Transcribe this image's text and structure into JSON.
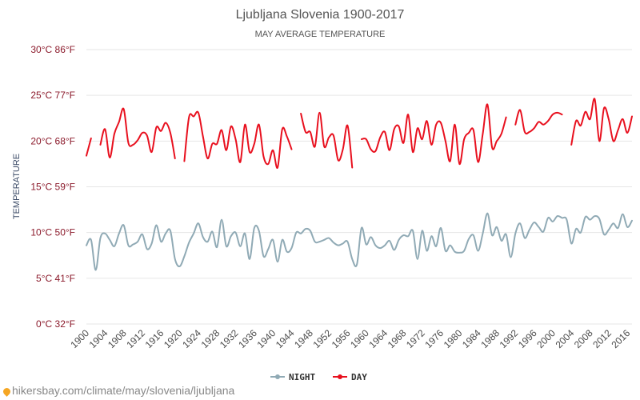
{
  "chart_data": {
    "type": "line",
    "title": "Ljubljana Slovenia 1900-2017",
    "subtitle": "MAY AVERAGE TEMPERATURE",
    "ylabel": "TEMPERATURE",
    "ylim": [
      0,
      30
    ],
    "xlim": [
      1900,
      2017
    ],
    "y_ticks": [
      {
        "value": 0,
        "label": "0°C 32°F"
      },
      {
        "value": 5,
        "label": "5°C 41°F"
      },
      {
        "value": 10,
        "label": "10°C 50°F"
      },
      {
        "value": 15,
        "label": "15°C 59°F"
      },
      {
        "value": 20,
        "label": "20°C 68°F"
      },
      {
        "value": 25,
        "label": "25°C 77°F"
      },
      {
        "value": 30,
        "label": "30°C 86°F"
      }
    ],
    "x_ticks": [
      "1900",
      "1904",
      "1908",
      "1912",
      "1916",
      "1920",
      "1924",
      "1928",
      "1932",
      "1936",
      "1940",
      "1944",
      "1948",
      "1952",
      "1956",
      "1960",
      "1964",
      "1968",
      "1972",
      "1976",
      "1980",
      "1984",
      "1988",
      "1992",
      "1996",
      "2000",
      "2004",
      "2008",
      "2012",
      "2016"
    ],
    "grid": true,
    "legend_position": "bottom",
    "series": [
      {
        "name": "NIGHT",
        "color": "#90aab5",
        "x": [
          1900,
          1901,
          1902,
          1903,
          1904,
          1905,
          1906,
          1907,
          1908,
          1909,
          1910,
          1911,
          1912,
          1913,
          1914,
          1915,
          1916,
          1917,
          1918,
          1919,
          1920,
          1921,
          1922,
          1923,
          1924,
          1925,
          1926,
          1927,
          1928,
          1929,
          1930,
          1931,
          1932,
          1933,
          1934,
          1935,
          1936,
          1937,
          1938,
          1939,
          1940,
          1941,
          1942,
          1943,
          1944,
          1945,
          1946,
          1947,
          1948,
          1949,
          1950,
          1951,
          1952,
          1953,
          1954,
          1955,
          1956,
          1957,
          1958,
          1959,
          1960,
          1961,
          1962,
          1963,
          1964,
          1965,
          1966,
          1967,
          1968,
          1969,
          1970,
          1971,
          1972,
          1973,
          1974,
          1975,
          1976,
          1977,
          1978,
          1979,
          1980,
          1981,
          1982,
          1983,
          1984,
          1985,
          1986,
          1987,
          1988,
          1989,
          1990,
          1991,
          1992,
          1993,
          1994,
          1995,
          1996,
          1997,
          1998,
          1999,
          2000,
          2001,
          2002,
          2003,
          2004,
          2005,
          2006,
          2007,
          2008,
          2009,
          2010,
          2011,
          2012,
          2013,
          2014,
          2015,
          2016,
          2017
        ],
        "values": [
          8.6,
          9.2,
          5.9,
          9.4,
          9.9,
          9.2,
          8.5,
          9.9,
          10.8,
          8.6,
          8.7,
          9.0,
          9.8,
          8.2,
          8.8,
          10.8,
          9.0,
          9.9,
          10.2,
          7.1,
          6.3,
          7.4,
          8.9,
          9.9,
          11.0,
          9.5,
          9.0,
          10.1,
          8.4,
          11.4,
          8.5,
          9.6,
          10.0,
          8.5,
          9.9,
          7.1,
          10.5,
          10.2,
          7.4,
          8.2,
          9.2,
          6.8,
          9.2,
          7.9,
          8.3,
          10.0,
          9.9,
          10.4,
          10.2,
          9.0,
          9.0,
          9.2,
          9.4,
          8.9,
          8.6,
          8.8,
          9.0,
          7.1,
          6.5,
          10.5,
          8.7,
          9.5,
          8.6,
          8.3,
          8.6,
          9.1,
          8.1,
          9.2,
          9.7,
          9.6,
          10.2,
          7.1,
          10.2,
          8.0,
          9.6,
          8.5,
          10.5,
          8.0,
          8.6,
          7.9,
          7.8,
          8.0,
          9.3,
          9.7,
          8.0,
          9.9,
          12.1,
          9.7,
          10.6,
          9.1,
          9.8,
          7.3,
          9.9,
          11.0,
          9.4,
          10.3,
          11.1,
          10.6,
          10.1,
          11.6,
          11.2,
          11.8,
          11.6,
          11.4,
          8.8,
          10.4,
          10.0,
          11.7,
          11.4,
          11.8,
          11.5,
          9.8,
          10.3,
          11.0,
          10.5,
          12.0,
          10.6,
          11.3
        ]
      },
      {
        "name": "DAY",
        "color": "#e8101e",
        "x": [
          1900,
          1901,
          1902,
          1903,
          1904,
          1905,
          1906,
          1907,
          1908,
          1909,
          1910,
          1911,
          1912,
          1913,
          1914,
          1915,
          1916,
          1917,
          1918,
          1919,
          1920,
          1921,
          1922,
          1923,
          1924,
          1925,
          1926,
          1927,
          1928,
          1929,
          1930,
          1931,
          1932,
          1933,
          1934,
          1935,
          1936,
          1937,
          1938,
          1939,
          1940,
          1941,
          1942,
          1943,
          1944,
          1945,
          1946,
          1947,
          1948,
          1949,
          1950,
          1951,
          1952,
          1953,
          1954,
          1955,
          1956,
          1957,
          1958,
          1959,
          1960,
          1961,
          1962,
          1963,
          1964,
          1965,
          1966,
          1967,
          1968,
          1969,
          1970,
          1971,
          1972,
          1973,
          1974,
          1975,
          1976,
          1977,
          1978,
          1979,
          1980,
          1981,
          1982,
          1983,
          1984,
          1985,
          1986,
          1987,
          1988,
          1989,
          1990,
          1991,
          1992,
          1993,
          1994,
          1995,
          1996,
          1997,
          1998,
          1999,
          2000,
          2001,
          2002,
          2003,
          2004,
          2005,
          2006,
          2007,
          2008,
          2009,
          2010,
          2011,
          2012,
          2013,
          2014,
          2015,
          2016,
          2017
        ],
        "values": [
          18.4,
          20.3,
          null,
          19.6,
          21.3,
          18.2,
          20.8,
          22.1,
          23.5,
          19.8,
          19.6,
          20.1,
          20.9,
          20.6,
          18.8,
          21.5,
          21.1,
          22.0,
          20.9,
          18.1,
          null,
          17.8,
          22.6,
          22.7,
          23.1,
          20.5,
          18.1,
          19.7,
          19.7,
          21.2,
          19.0,
          21.6,
          20.2,
          17.7,
          21.8,
          18.8,
          19.7,
          21.8,
          18.3,
          17.5,
          19.0,
          17.1,
          21.3,
          20.5,
          19.1,
          null,
          23.0,
          21.0,
          21.0,
          19.4,
          23.1,
          19.4,
          20.4,
          20.6,
          17.9,
          19.1,
          21.7,
          17.1,
          null,
          20.2,
          20.2,
          19.1,
          18.9,
          20.4,
          21.0,
          19.0,
          21.3,
          21.6,
          19.8,
          22.9,
          18.8,
          21.4,
          20.2,
          22.2,
          19.6,
          21.8,
          22.0,
          20.0,
          17.8,
          21.8,
          17.5,
          20.2,
          20.9,
          21.2,
          17.7,
          20.8,
          24.0,
          19.3,
          20.0,
          20.8,
          22.6,
          null,
          21.8,
          23.4,
          21.0,
          21.0,
          21.4,
          22.1,
          21.8,
          22.2,
          22.9,
          23.1,
          22.9,
          null,
          19.6,
          22.2,
          21.7,
          23.2,
          22.4,
          24.6,
          20.0,
          23.6,
          22.4,
          20.0,
          21.2,
          22.4,
          20.9,
          22.7
        ]
      }
    ]
  },
  "footer": {
    "source": "hikersbay.com/climate/may/slovenia/ljubljana"
  }
}
